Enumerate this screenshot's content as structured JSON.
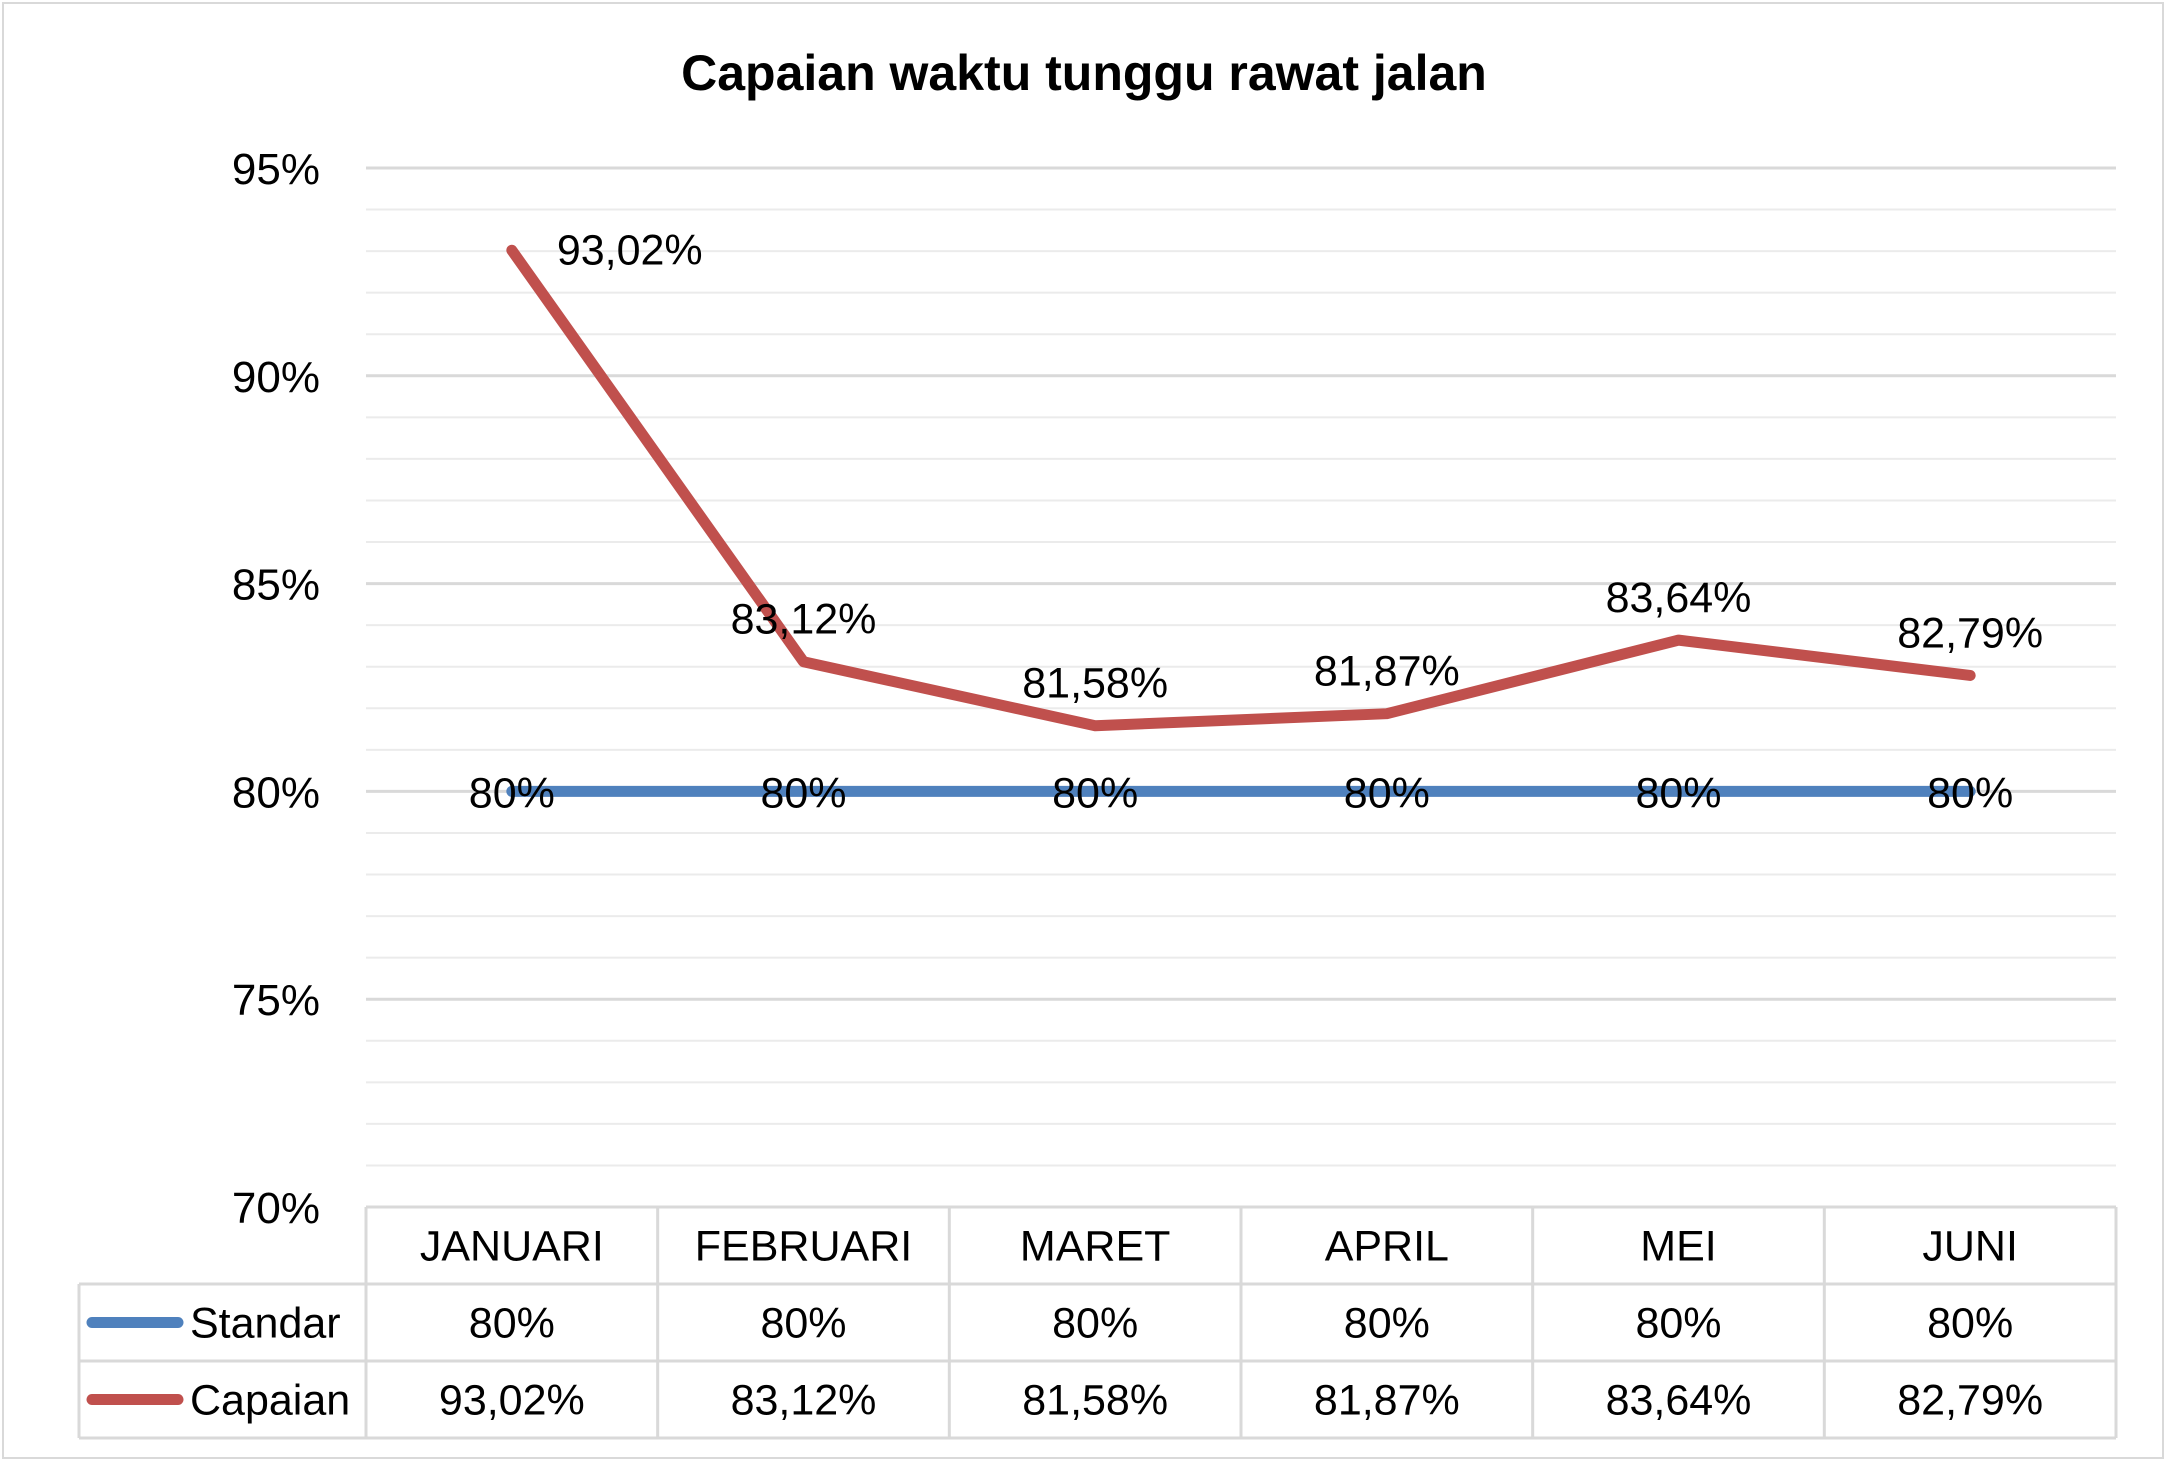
{
  "chart_data": {
    "type": "line",
    "title": "Capaian waktu tunggu rawat jalan",
    "categories": [
      "JANUARI",
      "FEBRUARI",
      "MARET",
      "APRIL",
      "MEI",
      "JUNI"
    ],
    "ylim": [
      70,
      95
    ],
    "y_major_ticks": [
      95,
      90,
      85,
      80,
      75,
      70
    ],
    "y_tick_labels": [
      "95%",
      "90%",
      "85%",
      "80%",
      "75%",
      "70%"
    ],
    "y_minor_step": 1,
    "grid": true,
    "legend": "data table below chart",
    "series": [
      {
        "name": "Standar",
        "color": "#4f81bd",
        "values": [
          80,
          80,
          80,
          80,
          80,
          80
        ],
        "labels": [
          "80%",
          "80%",
          "80%",
          "80%",
          "80%",
          "80%"
        ]
      },
      {
        "name": "Capaian",
        "color": "#c0504d",
        "values": [
          93.02,
          83.12,
          81.58,
          81.87,
          83.64,
          82.79
        ],
        "labels": [
          "93,02%",
          "83,12%",
          "81,58%",
          "81,87%",
          "83,64%",
          "82,79%"
        ]
      }
    ]
  }
}
